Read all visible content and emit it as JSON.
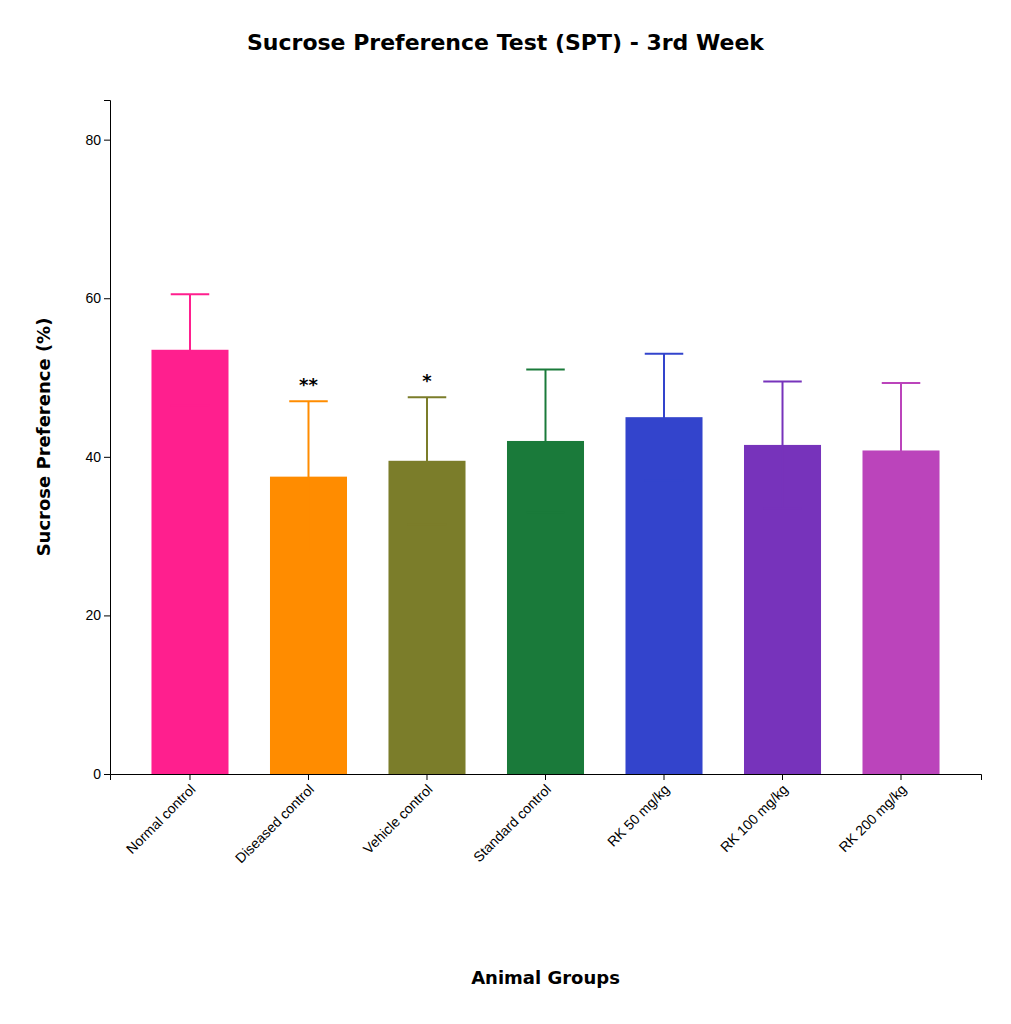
{
  "chart_data": {
    "type": "bar",
    "title": "Sucrose Preference Test (SPT) - 3rd Week",
    "xlabel": "Animal Groups",
    "ylabel": "Sucrose Preference (%)",
    "categories": [
      "Normal control",
      "Diseased control",
      "Vehicle control",
      "Standard control",
      "RK 50 mg/kg",
      "RK 100 mg/kg",
      "RK 200 mg/kg"
    ],
    "values": [
      53.5,
      37.5,
      39.5,
      42.0,
      45.0,
      41.5,
      40.8
    ],
    "errors": [
      7.0,
      9.5,
      8.0,
      9.0,
      8.0,
      8.0,
      8.5
    ],
    "significance": [
      null,
      "**",
      "*",
      null,
      null,
      null,
      null
    ],
    "colors": [
      "#FF1F8E",
      "#FF8C00",
      "#7B7D2A",
      "#1A7A3A",
      "#3344CC",
      "#7733BB",
      "#BB44BB"
    ],
    "ylim": [
      0,
      85
    ],
    "yticks": [
      0,
      20,
      40,
      60,
      80
    ],
    "grid": false
  }
}
